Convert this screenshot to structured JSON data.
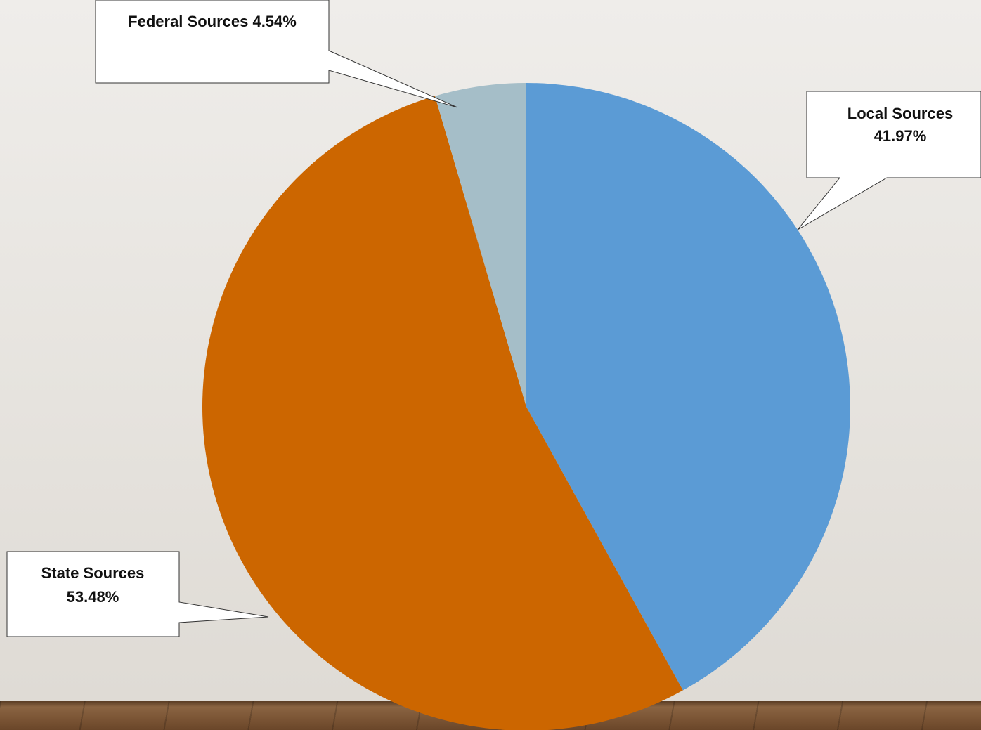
{
  "chart_data": {
    "type": "pie",
    "title": "",
    "slices": [
      {
        "name": "Local Sources",
        "value": 41.97,
        "color": "#5b9bd5",
        "label_lines": [
          "Local Sources",
          "41.97%"
        ]
      },
      {
        "name": "State Sources",
        "value": 53.48,
        "color": "#cc6600",
        "label_lines": [
          "State Sources",
          "53.48%"
        ]
      },
      {
        "name": "Federal Sources",
        "value": 4.54,
        "color": "#a5bec8",
        "label_lines": [
          "Federal Sources 4.54%"
        ]
      },
      {
        "name": "",
        "value": 0.01,
        "color": "#b04a8c",
        "label_lines": []
      }
    ],
    "start_angle": "12 o'clock",
    "direction": "clockwise",
    "legend": "none",
    "labels": "callouts"
  }
}
